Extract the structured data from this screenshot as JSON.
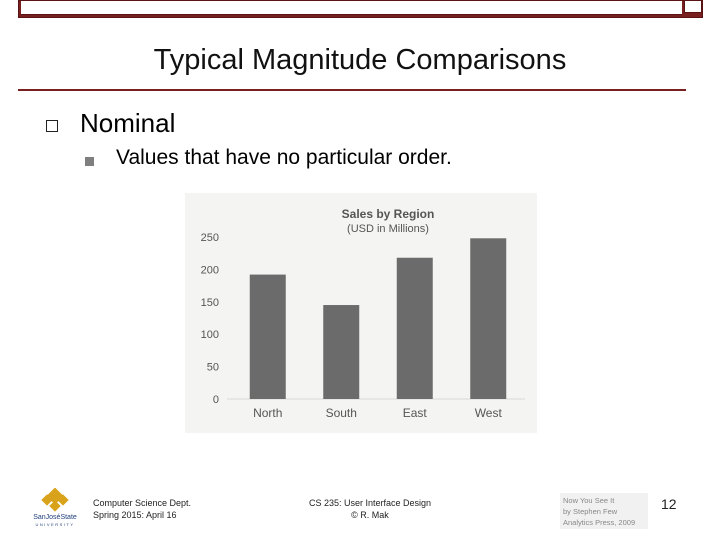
{
  "slide": {
    "title": "Typical Magnitude Comparisons",
    "bullet_1": "Nominal",
    "bullet_2": "Values that have no particular order."
  },
  "footer": {
    "dept_line1": "Computer Science Dept.",
    "dept_line2": "Spring 2015: April 16",
    "course_line1": "CS 235: User Interface Design",
    "course_line2": "© R. Mak",
    "cite_line1": "Now You See It",
    "cite_line2": "by Stephen Few",
    "cite_line3": "Analytics Press, 2009",
    "page_number": "12",
    "logo_line1": "SanJoséState",
    "logo_line2": "UNIVERSITY"
  },
  "chart_data": {
    "type": "bar",
    "title": "Sales by Region",
    "subtitle": "(USD in Millions)",
    "categories": [
      "North",
      "South",
      "East",
      "West"
    ],
    "values": [
      192,
      145,
      218,
      248
    ],
    "ylim": [
      0,
      250
    ],
    "yticks": [
      0,
      50,
      100,
      150,
      200,
      250
    ],
    "grid": false,
    "bar_color": "#6b6b6b"
  }
}
